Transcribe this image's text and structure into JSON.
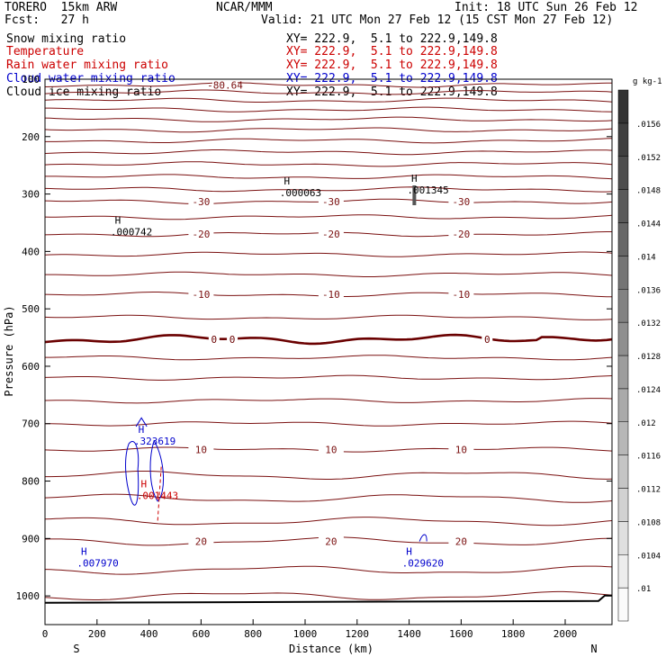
{
  "header": {
    "model": "TORERO  15km ARW",
    "org": "NCAR/MMM",
    "init": "Init: 18 UTC Sun 26 Feb 12",
    "fcst": "Fcst:   27 h",
    "valid": "Valid: 21 UTC Mon 27 Feb 12 (15 CST Mon 27 Feb 12)"
  },
  "fields": [
    {
      "name": "Snow mixing ratio",
      "xy": "XY= 222.9,  5.1 to 222.9,149.8",
      "color": "#000000"
    },
    {
      "name": "Temperature",
      "xy": "XY= 222.9,  5.1 to 222.9,149.8",
      "color": "#cc0000"
    },
    {
      "name": "Rain water mixing ratio",
      "xy": "XY= 222.9,  5.1 to 222.9,149.8",
      "color": "#cc0000"
    },
    {
      "name": "Cloud water mixing ratio",
      "xy": "XY= 222.9,  5.1 to 222.9,149.8",
      "color": "#0000cc"
    },
    {
      "name": "Cloud ice mixing ratio",
      "xy": "XY= 222.9,  5.1 to 222.9,149.8",
      "color": "#000000"
    }
  ],
  "chart_data": {
    "type": "contour cross-section",
    "xlabel": "Distance (km)",
    "ylabel": "Pressure (hPa)",
    "xlim": [
      0,
      2180
    ],
    "ylim": [
      1050,
      100
    ],
    "x_ticks": [
      0,
      200,
      400,
      600,
      800,
      1000,
      1200,
      1400,
      1600,
      1800,
      2000
    ],
    "y_ticks": [
      100,
      200,
      300,
      400,
      500,
      600,
      700,
      800,
      900,
      1000
    ],
    "x_end_labels": {
      "left": "S",
      "right": "N"
    },
    "temperature_contours": [
      {
        "p": 110,
        "label": "-80.64"
      },
      {
        "p": 123
      },
      {
        "p": 137
      },
      {
        "p": 153
      },
      {
        "p": 170
      },
      {
        "p": 188
      },
      {
        "p": 207
      },
      {
        "p": 227
      },
      {
        "p": 248
      },
      {
        "p": 270
      },
      {
        "p": 292
      },
      {
        "p": 313,
        "label": "-30"
      },
      {
        "p": 340
      },
      {
        "p": 370,
        "label": "-20"
      },
      {
        "p": 405
      },
      {
        "p": 440
      },
      {
        "p": 475,
        "label": "-10"
      },
      {
        "p": 515
      },
      {
        "p": 585
      },
      {
        "p": 620
      },
      {
        "p": 660
      },
      {
        "p": 700
      },
      {
        "p": 745,
        "label": "10"
      },
      {
        "p": 790
      },
      {
        "p": 830
      },
      {
        "p": 870
      },
      {
        "p": 905,
        "label": "20"
      },
      {
        "p": 955
      },
      {
        "p": 1000
      }
    ],
    "freezing_level_hPa": 553,
    "freezing_label": "0",
    "surface_hPa": 1012,
    "colorbar": {
      "unit": "g kg-1",
      "levels": [
        ".01",
        ".0104",
        ".0108",
        ".0112",
        ".0116",
        ".012",
        ".0124",
        ".0128",
        ".0132",
        ".0136",
        ".014",
        ".0144",
        ".0148",
        ".0152",
        ".0156"
      ]
    },
    "maxima": [
      {
        "x": 930,
        "p": 290,
        "label": ".000063",
        "color": "#000000"
      },
      {
        "x": 1420,
        "p": 285,
        "label": ".001345",
        "color": "#000000"
      },
      {
        "x": 280,
        "p": 358,
        "label": ".000742",
        "color": "#000000"
      },
      {
        "x": 370,
        "p": 722,
        "label": ".323619",
        "color": "#0000cc"
      },
      {
        "x": 380,
        "p": 817,
        "label": ".001443",
        "color": "#cc0000"
      },
      {
        "x": 150,
        "p": 935,
        "label": ".007970",
        "color": "#0000cc"
      },
      {
        "x": 1400,
        "p": 935,
        "label": ".029620",
        "color": "#0000cc"
      }
    ]
  }
}
